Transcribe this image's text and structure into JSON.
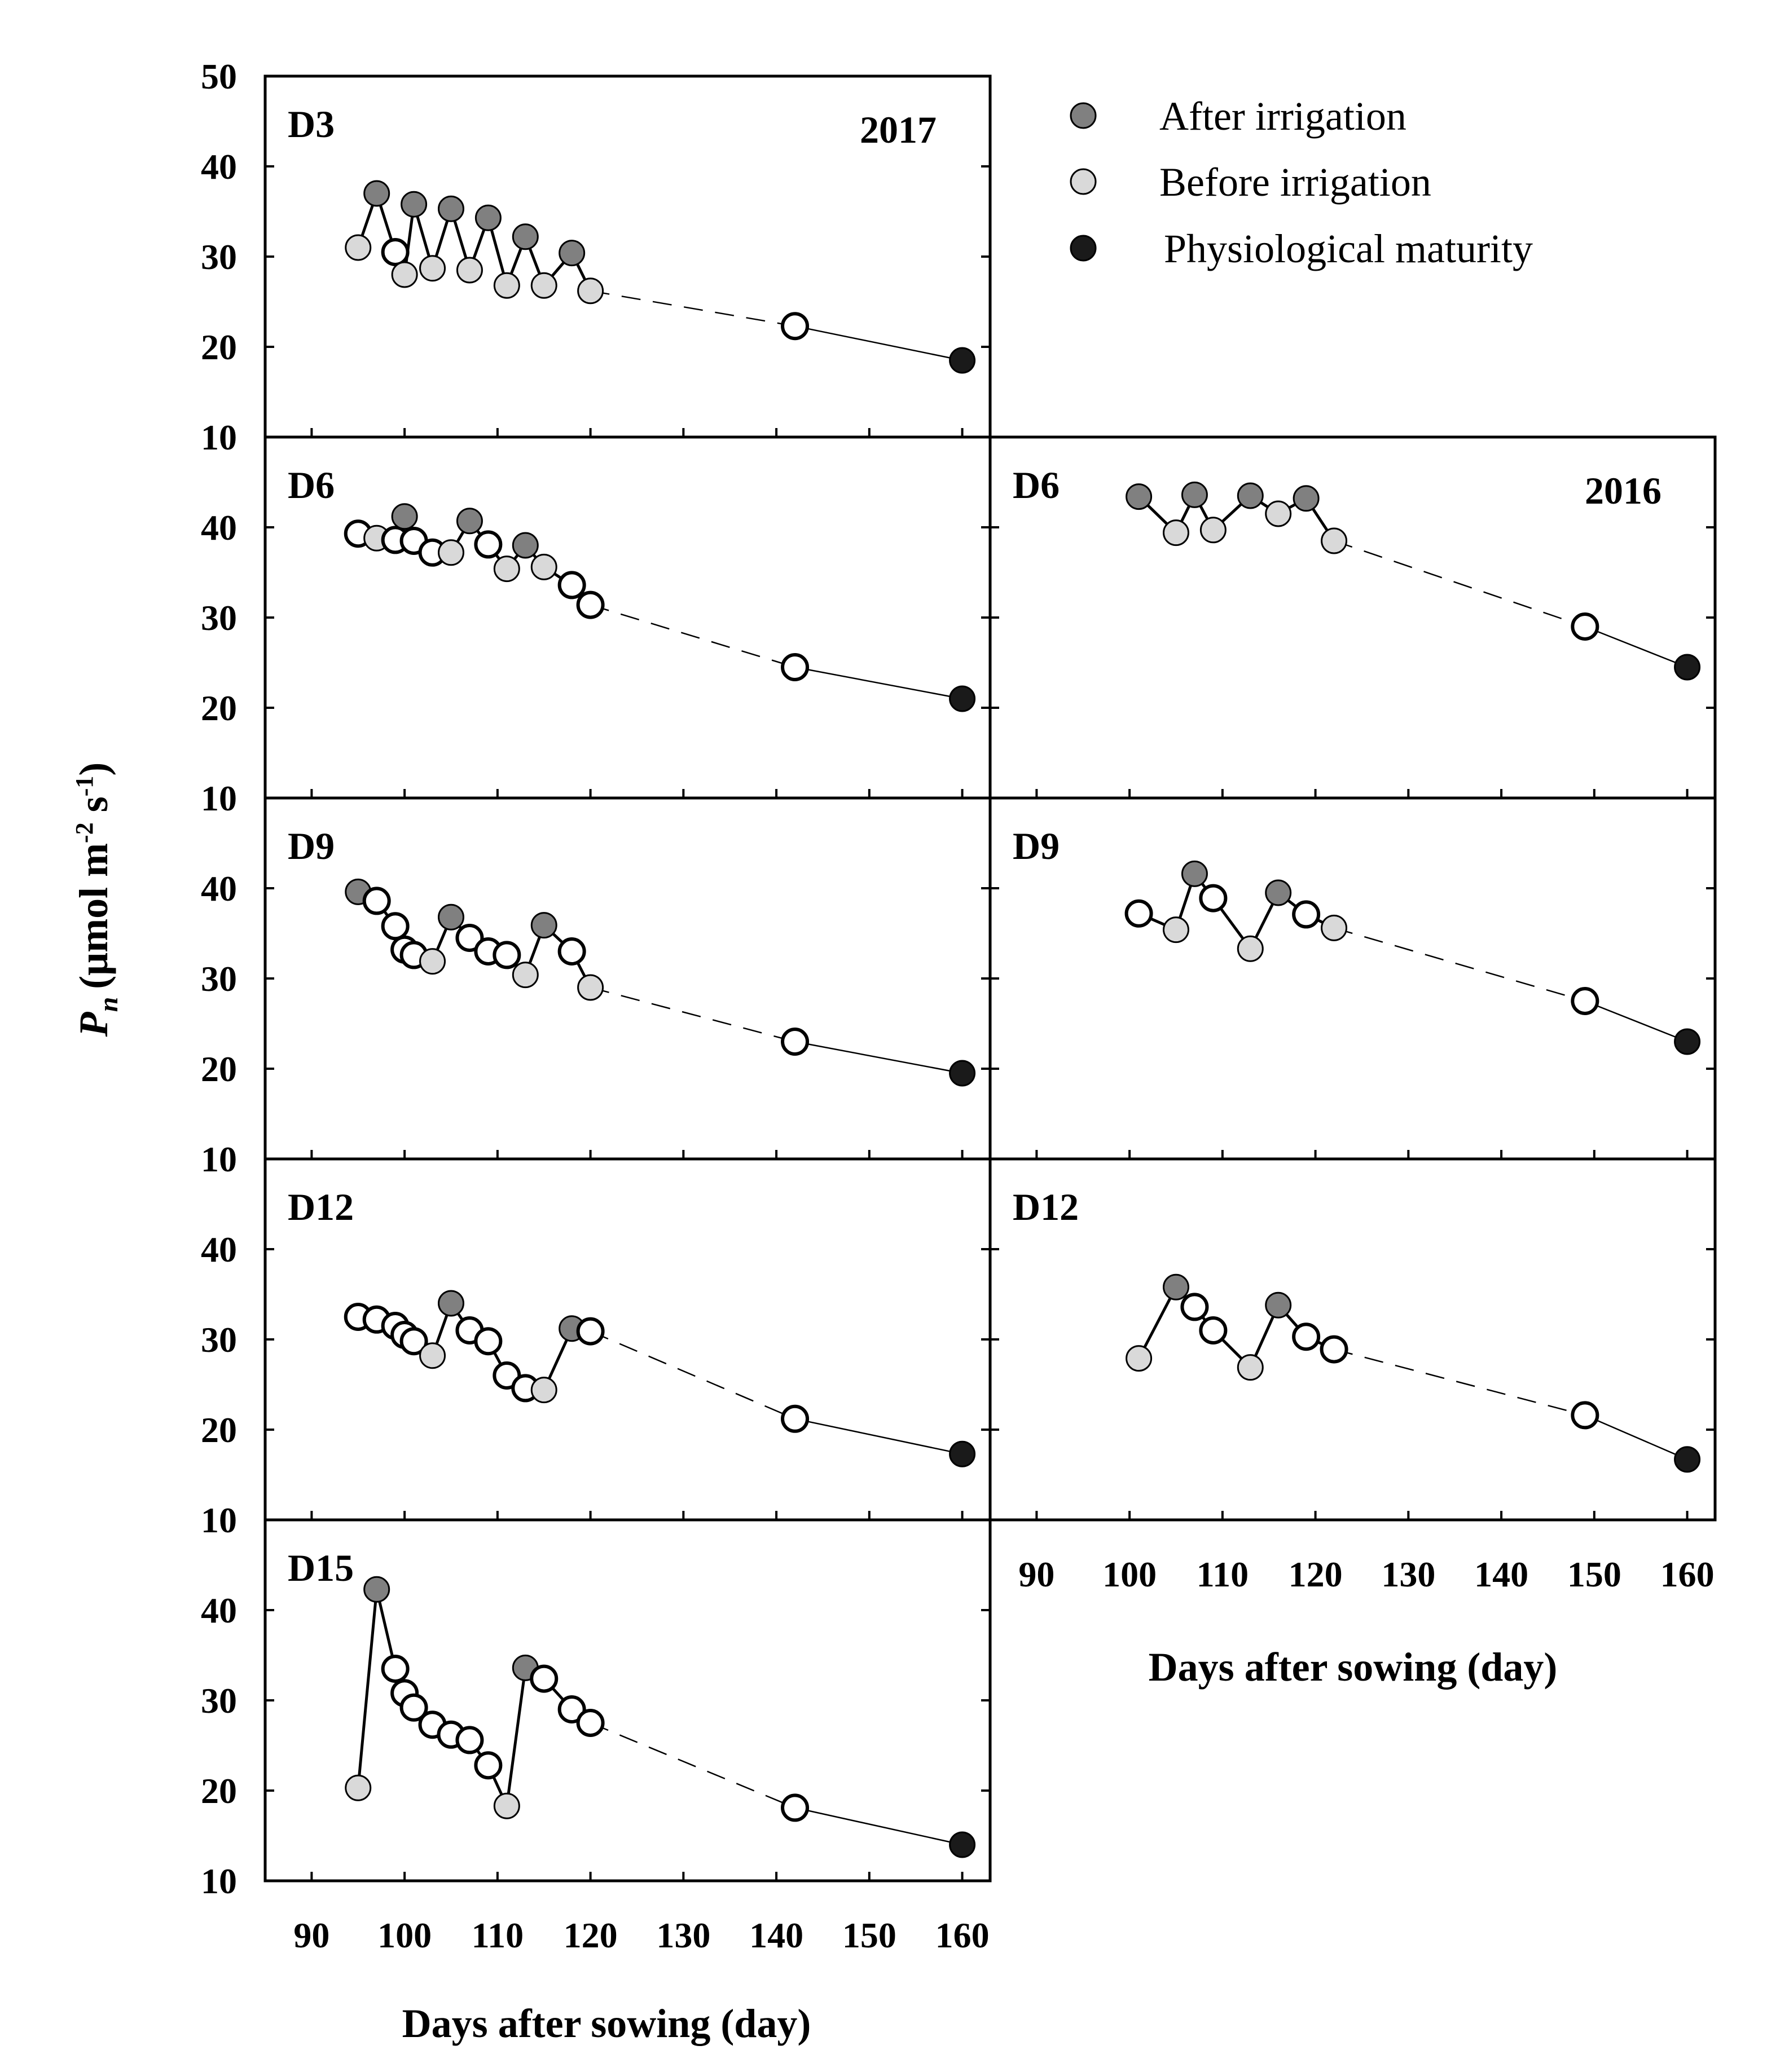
{
  "y_axis_title": {
    "prefix": "P",
    "subscript": "n",
    "unit": "(μmol m",
    "exp1": "-2",
    "mid": " s",
    "exp2": "-1",
    "close": ")"
  },
  "x_axis_title": "Days after sowing (day)",
  "legend": [
    {
      "key": "after",
      "label": "After irrigation",
      "color": "#808080"
    },
    {
      "key": "before",
      "label": "Before irrigation",
      "color": "#d9d9d9"
    },
    {
      "key": "maturity",
      "label": "Physiological maturity",
      "color": "#1a1a1a"
    }
  ],
  "colors": {
    "after": "#808080",
    "before": "#d9d9d9",
    "maturity": "#1a1a1a",
    "open": "#ffffff",
    "stroke": "#000000"
  },
  "chart_data": [
    {
      "type": "line",
      "id": "2017-D3",
      "column": 0,
      "row": 0,
      "label": "D3",
      "year_label": "2017",
      "xlim": [
        85,
        163
      ],
      "ylim": [
        10,
        50
      ],
      "xticks": [
        90,
        100,
        110,
        120,
        130,
        140,
        150,
        160
      ],
      "yticks": [
        10,
        20,
        30,
        40,
        50
      ],
      "ytick_labels": [
        "10",
        "20",
        "30",
        "40",
        "50"
      ],
      "show_x_labels": false,
      "points": [
        {
          "x": 95,
          "y": 31.0,
          "k": "before"
        },
        {
          "x": 97,
          "y": 37.0,
          "k": "after"
        },
        {
          "x": 99,
          "y": 30.5,
          "k": "open"
        },
        {
          "x": 100,
          "y": 28.0,
          "k": "before"
        },
        {
          "x": 101,
          "y": 35.8,
          "k": "after"
        },
        {
          "x": 103,
          "y": 28.7,
          "k": "before"
        },
        {
          "x": 105,
          "y": 35.3,
          "k": "after"
        },
        {
          "x": 107,
          "y": 28.5,
          "k": "before"
        },
        {
          "x": 109,
          "y": 34.3,
          "k": "after"
        },
        {
          "x": 111,
          "y": 26.8,
          "k": "before"
        },
        {
          "x": 113,
          "y": 32.2,
          "k": "after"
        },
        {
          "x": 115,
          "y": 26.8,
          "k": "before"
        },
        {
          "x": 118,
          "y": 30.4,
          "k": "after"
        },
        {
          "x": 120,
          "y": 26.2,
          "k": "before"
        },
        {
          "x": 142,
          "y": 22.3,
          "k": "open"
        },
        {
          "x": 160,
          "y": 18.5,
          "k": "maturity"
        }
      ]
    },
    {
      "type": "line",
      "id": "2017-D6",
      "column": 0,
      "row": 1,
      "label": "D6",
      "year_label": "",
      "xlim": [
        85,
        163
      ],
      "ylim": [
        10,
        50
      ],
      "xticks": [
        90,
        100,
        110,
        120,
        130,
        140,
        150,
        160
      ],
      "yticks": [
        10,
        20,
        30,
        40,
        50
      ],
      "ytick_labels": [
        "10",
        "20",
        "30",
        "40",
        ""
      ],
      "show_x_labels": false,
      "points": [
        {
          "x": 95,
          "y": 39.3,
          "k": "open"
        },
        {
          "x": 97,
          "y": 38.8,
          "k": "before"
        },
        {
          "x": 99,
          "y": 38.6,
          "k": "open"
        },
        {
          "x": 100,
          "y": 41.2,
          "k": "after"
        },
        {
          "x": 101,
          "y": 38.5,
          "k": "open"
        },
        {
          "x": 103,
          "y": 37.2,
          "k": "open"
        },
        {
          "x": 105,
          "y": 37.2,
          "k": "before"
        },
        {
          "x": 107,
          "y": 40.7,
          "k": "after"
        },
        {
          "x": 109,
          "y": 38.1,
          "k": "open"
        },
        {
          "x": 111,
          "y": 35.4,
          "k": "before"
        },
        {
          "x": 113,
          "y": 38.0,
          "k": "after"
        },
        {
          "x": 115,
          "y": 35.6,
          "k": "before"
        },
        {
          "x": 118,
          "y": 33.6,
          "k": "open"
        },
        {
          "x": 120,
          "y": 31.4,
          "k": "open"
        },
        {
          "x": 142,
          "y": 24.5,
          "k": "open"
        },
        {
          "x": 160,
          "y": 21.0,
          "k": "maturity"
        }
      ]
    },
    {
      "type": "line",
      "id": "2017-D9",
      "column": 0,
      "row": 2,
      "label": "D9",
      "year_label": "",
      "xlim": [
        85,
        163
      ],
      "ylim": [
        10,
        50
      ],
      "xticks": [
        90,
        100,
        110,
        120,
        130,
        140,
        150,
        160
      ],
      "yticks": [
        10,
        20,
        30,
        40,
        50
      ],
      "ytick_labels": [
        "10",
        "20",
        "30",
        "40",
        ""
      ],
      "show_x_labels": false,
      "points": [
        {
          "x": 95,
          "y": 39.6,
          "k": "after"
        },
        {
          "x": 97,
          "y": 38.6,
          "k": "open"
        },
        {
          "x": 99,
          "y": 35.8,
          "k": "open"
        },
        {
          "x": 100,
          "y": 33.2,
          "k": "open"
        },
        {
          "x": 101,
          "y": 32.6,
          "k": "open"
        },
        {
          "x": 103,
          "y": 31.9,
          "k": "before"
        },
        {
          "x": 105,
          "y": 36.8,
          "k": "after"
        },
        {
          "x": 107,
          "y": 34.5,
          "k": "open"
        },
        {
          "x": 109,
          "y": 33.0,
          "k": "open"
        },
        {
          "x": 111,
          "y": 32.6,
          "k": "open"
        },
        {
          "x": 113,
          "y": 30.4,
          "k": "before"
        },
        {
          "x": 115,
          "y": 35.9,
          "k": "after"
        },
        {
          "x": 118,
          "y": 33.0,
          "k": "open"
        },
        {
          "x": 120,
          "y": 29.0,
          "k": "before"
        },
        {
          "x": 142,
          "y": 23.0,
          "k": "open"
        },
        {
          "x": 160,
          "y": 19.5,
          "k": "maturity"
        }
      ]
    },
    {
      "type": "line",
      "id": "2017-D12",
      "column": 0,
      "row": 3,
      "label": "D12",
      "year_label": "",
      "xlim": [
        85,
        163
      ],
      "ylim": [
        10,
        50
      ],
      "xticks": [
        90,
        100,
        110,
        120,
        130,
        140,
        150,
        160
      ],
      "yticks": [
        10,
        20,
        30,
        40,
        50
      ],
      "ytick_labels": [
        "10",
        "20",
        "30",
        "40",
        ""
      ],
      "show_x_labels": false,
      "points": [
        {
          "x": 95,
          "y": 32.5,
          "k": "open"
        },
        {
          "x": 97,
          "y": 32.2,
          "k": "open"
        },
        {
          "x": 99,
          "y": 31.5,
          "k": "open"
        },
        {
          "x": 100,
          "y": 30.5,
          "k": "open"
        },
        {
          "x": 101,
          "y": 29.8,
          "k": "open"
        },
        {
          "x": 103,
          "y": 28.2,
          "k": "before"
        },
        {
          "x": 105,
          "y": 34.0,
          "k": "after"
        },
        {
          "x": 107,
          "y": 31.0,
          "k": "open"
        },
        {
          "x": 109,
          "y": 29.8,
          "k": "open"
        },
        {
          "x": 111,
          "y": 26.0,
          "k": "open"
        },
        {
          "x": 113,
          "y": 24.6,
          "k": "open"
        },
        {
          "x": 115,
          "y": 24.4,
          "k": "before"
        },
        {
          "x": 118,
          "y": 31.2,
          "k": "after"
        },
        {
          "x": 120,
          "y": 30.9,
          "k": "open"
        },
        {
          "x": 142,
          "y": 21.2,
          "k": "open"
        },
        {
          "x": 160,
          "y": 17.3,
          "k": "maturity"
        }
      ]
    },
    {
      "type": "line",
      "id": "2017-D15",
      "column": 0,
      "row": 4,
      "label": "D15",
      "year_label": "",
      "xlim": [
        85,
        163
      ],
      "ylim": [
        10,
        50
      ],
      "xticks": [
        90,
        100,
        110,
        120,
        130,
        140,
        150,
        160
      ],
      "xtick_labels": [
        "90",
        "100",
        "110",
        "120",
        "130",
        "140",
        "150",
        "160"
      ],
      "yticks": [
        10,
        20,
        30,
        40,
        50
      ],
      "ytick_labels": [
        "10",
        "20",
        "30",
        "40",
        ""
      ],
      "show_x_labels": true,
      "points": [
        {
          "x": 95,
          "y": 20.3,
          "k": "before"
        },
        {
          "x": 97,
          "y": 42.3,
          "k": "after"
        },
        {
          "x": 99,
          "y": 33.5,
          "k": "open"
        },
        {
          "x": 100,
          "y": 30.8,
          "k": "open"
        },
        {
          "x": 101,
          "y": 29.2,
          "k": "open"
        },
        {
          "x": 103,
          "y": 27.3,
          "k": "open"
        },
        {
          "x": 105,
          "y": 26.2,
          "k": "open"
        },
        {
          "x": 107,
          "y": 25.6,
          "k": "open"
        },
        {
          "x": 109,
          "y": 22.8,
          "k": "open"
        },
        {
          "x": 111,
          "y": 18.3,
          "k": "before"
        },
        {
          "x": 113,
          "y": 33.6,
          "k": "after"
        },
        {
          "x": 115,
          "y": 32.4,
          "k": "open"
        },
        {
          "x": 118,
          "y": 29.0,
          "k": "open"
        },
        {
          "x": 120,
          "y": 27.5,
          "k": "open"
        },
        {
          "x": 142,
          "y": 18.1,
          "k": "open"
        },
        {
          "x": 160,
          "y": 14.0,
          "k": "maturity"
        }
      ]
    },
    {
      "type": "line",
      "id": "2016-D6",
      "column": 1,
      "row": 1,
      "label": "D6",
      "year_label": "2016",
      "xlim": [
        85,
        163
      ],
      "ylim": [
        10,
        50
      ],
      "xticks": [
        90,
        100,
        110,
        120,
        130,
        140,
        150,
        160
      ],
      "yticks": [
        10,
        20,
        30,
        40,
        50
      ],
      "ytick_labels": [],
      "show_x_labels": false,
      "points": [
        {
          "x": 101,
          "y": 43.4,
          "k": "after"
        },
        {
          "x": 105,
          "y": 39.4,
          "k": "before"
        },
        {
          "x": 107,
          "y": 43.6,
          "k": "after"
        },
        {
          "x": 109,
          "y": 39.7,
          "k": "before"
        },
        {
          "x": 113,
          "y": 43.5,
          "k": "after"
        },
        {
          "x": 116,
          "y": 41.5,
          "k": "before"
        },
        {
          "x": 119,
          "y": 43.2,
          "k": "after"
        },
        {
          "x": 122,
          "y": 38.5,
          "k": "before"
        },
        {
          "x": 149,
          "y": 29.0,
          "k": "open"
        },
        {
          "x": 160,
          "y": 24.5,
          "k": "maturity"
        }
      ]
    },
    {
      "type": "line",
      "id": "2016-D9",
      "column": 1,
      "row": 2,
      "label": "D9",
      "year_label": "",
      "xlim": [
        85,
        163
      ],
      "ylim": [
        10,
        50
      ],
      "xticks": [
        90,
        100,
        110,
        120,
        130,
        140,
        150,
        160
      ],
      "yticks": [
        10,
        20,
        30,
        40,
        50
      ],
      "ytick_labels": [],
      "show_x_labels": false,
      "points": [
        {
          "x": 101,
          "y": 37.2,
          "k": "open"
        },
        {
          "x": 105,
          "y": 35.4,
          "k": "before"
        },
        {
          "x": 107,
          "y": 41.6,
          "k": "after"
        },
        {
          "x": 109,
          "y": 38.9,
          "k": "open"
        },
        {
          "x": 113,
          "y": 33.3,
          "k": "before"
        },
        {
          "x": 116,
          "y": 39.5,
          "k": "after"
        },
        {
          "x": 119,
          "y": 37.1,
          "k": "open"
        },
        {
          "x": 122,
          "y": 35.6,
          "k": "before"
        },
        {
          "x": 149,
          "y": 27.5,
          "k": "open"
        },
        {
          "x": 160,
          "y": 23.0,
          "k": "maturity"
        }
      ]
    },
    {
      "type": "line",
      "id": "2016-D12",
      "column": 1,
      "row": 3,
      "label": "D12",
      "year_label": "",
      "xlim": [
        85,
        163
      ],
      "ylim": [
        10,
        50
      ],
      "xticks": [
        90,
        100,
        110,
        120,
        130,
        140,
        150,
        160
      ],
      "xtick_labels": [
        "90",
        "100",
        "110",
        "120",
        "130",
        "140",
        "150",
        "160"
      ],
      "yticks": [
        10,
        20,
        30,
        40,
        50
      ],
      "ytick_labels": [],
      "show_x_labels": true,
      "points": [
        {
          "x": 101,
          "y": 27.9,
          "k": "before"
        },
        {
          "x": 105,
          "y": 35.8,
          "k": "after"
        },
        {
          "x": 107,
          "y": 33.6,
          "k": "open"
        },
        {
          "x": 109,
          "y": 31.0,
          "k": "open"
        },
        {
          "x": 113,
          "y": 26.9,
          "k": "before"
        },
        {
          "x": 116,
          "y": 33.8,
          "k": "after"
        },
        {
          "x": 119,
          "y": 30.3,
          "k": "open"
        },
        {
          "x": 122,
          "y": 28.9,
          "k": "open"
        },
        {
          "x": 149,
          "y": 21.6,
          "k": "open"
        },
        {
          "x": 160,
          "y": 16.7,
          "k": "maturity"
        }
      ]
    }
  ]
}
